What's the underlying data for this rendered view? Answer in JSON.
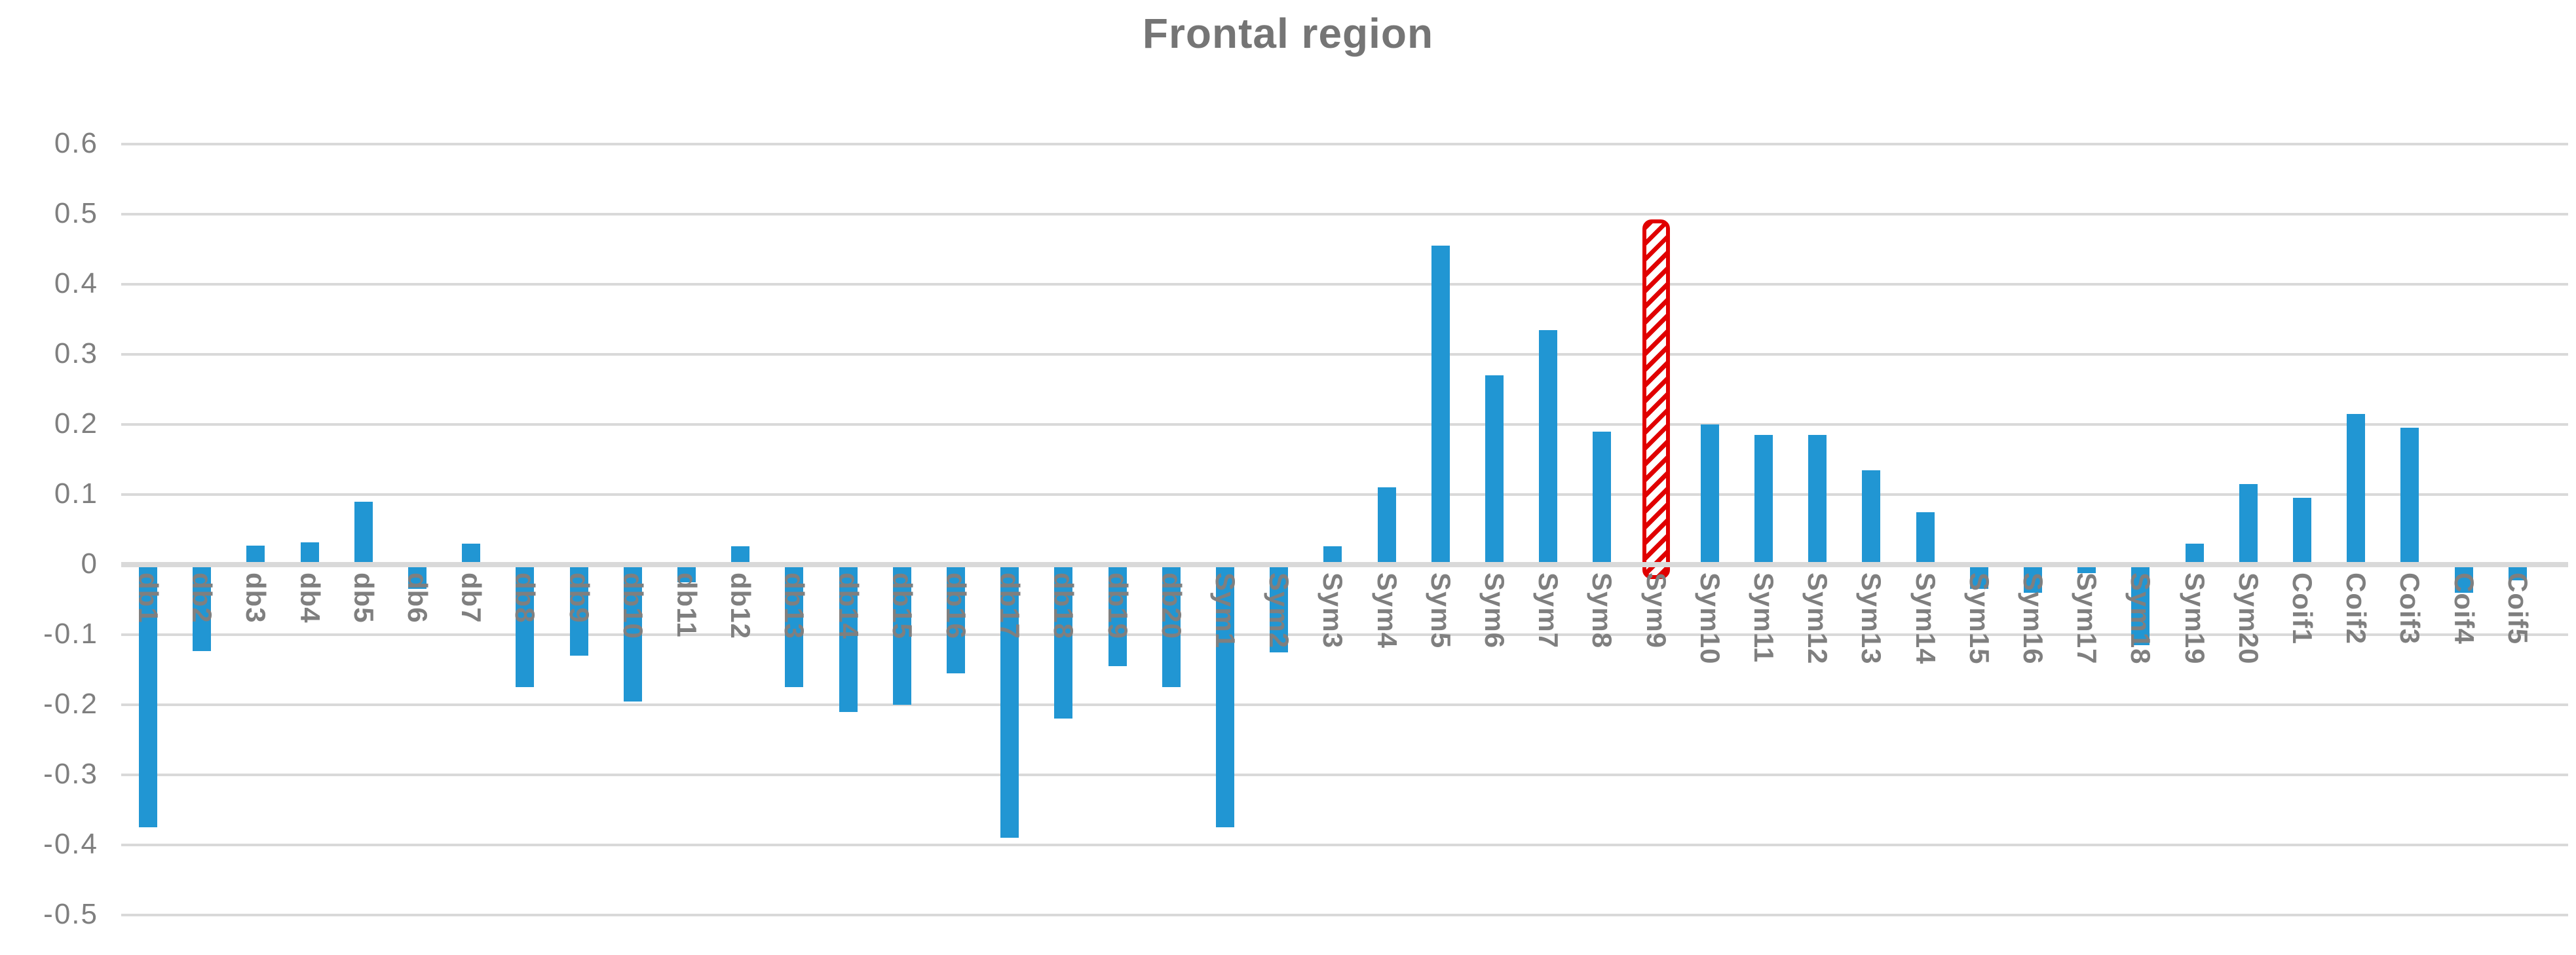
{
  "colors": {
    "bar": "#2196d3",
    "highlight": "#e00000",
    "grid": "#d9d9d9",
    "axis_text": "#7f7f7f",
    "title_text": "#757575",
    "background": "#ffffff"
  },
  "chart_data": {
    "type": "bar",
    "title": "Frontal region",
    "categories": [
      "db1",
      "db2",
      "db3",
      "db4",
      "db5",
      "db6",
      "db7",
      "db8",
      "db9",
      "db10",
      "db11",
      "db12",
      "db13",
      "db14",
      "db15",
      "db16",
      "db17",
      "db18",
      "db19",
      "db20",
      "Sym1",
      "Sym2",
      "Sym3",
      "Sym4",
      "Sym5",
      "Sym6",
      "Sym7",
      "Sym8",
      "Sym9",
      "Sym10",
      "Sym11",
      "Sym12",
      "Sym13",
      "Sym14",
      "Sym15",
      "Sym16",
      "Sym17",
      "Sym18",
      "Sym19",
      "Sym20",
      "Coif1",
      "Coif2",
      "Coif3",
      "Coif4",
      "Coif5"
    ],
    "values": [
      -0.375,
      -0.123,
      0.027,
      0.032,
      0.09,
      -0.035,
      0.03,
      -0.175,
      -0.13,
      -0.195,
      -0.025,
      0.026,
      -0.175,
      -0.21,
      -0.2,
      -0.155,
      -0.39,
      -0.22,
      -0.145,
      -0.175,
      -0.375,
      -0.125,
      0.026,
      0.11,
      0.455,
      0.27,
      0.335,
      0.19,
      0.49,
      0.2,
      0.185,
      0.185,
      0.135,
      0.075,
      -0.035,
      -0.04,
      -0.012,
      -0.115,
      0.03,
      0.115,
      0.095,
      0.215,
      0.195,
      -0.04,
      -0.022
    ],
    "highlight": {
      "category": "Sym9",
      "style": "red rounded outline with white-red diagonal hatch fill"
    },
    "ylim": [
      -0.5,
      0.6
    ],
    "ytick_step": 0.1,
    "y_ticks": [
      {
        "value": 0.6,
        "label": "0.6"
      },
      {
        "value": 0.5,
        "label": "0.5"
      },
      {
        "value": 0.4,
        "label": "0.4"
      },
      {
        "value": 0.3,
        "label": "0.3"
      },
      {
        "value": 0.2,
        "label": "0.2"
      },
      {
        "value": 0.1,
        "label": "0.1"
      },
      {
        "value": 0,
        "label": "0"
      },
      {
        "value": -0.1,
        "label": "-0.1"
      },
      {
        "value": -0.2,
        "label": "-0.2"
      },
      {
        "value": -0.3,
        "label": "-0.3"
      },
      {
        "value": -0.4,
        "label": "-0.4"
      },
      {
        "value": -0.5,
        "label": "-0.5"
      }
    ],
    "grid": true,
    "legend": false,
    "xlabel": "",
    "ylabel": "",
    "category_label_rotation_deg": 90
  }
}
